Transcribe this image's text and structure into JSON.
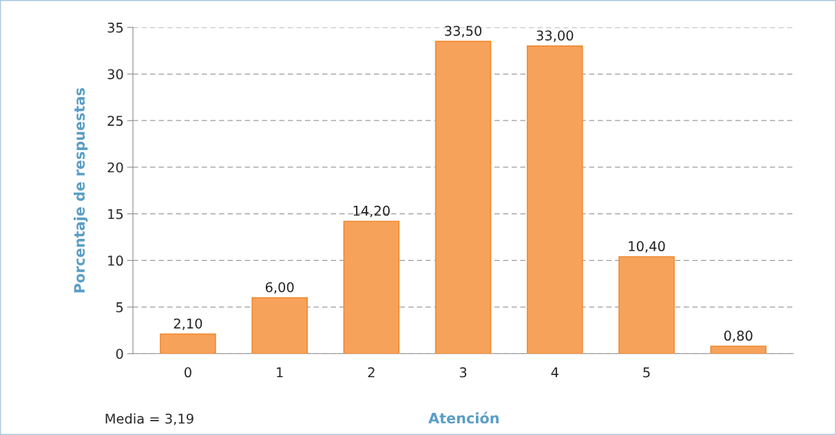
{
  "chart_data": {
    "type": "bar",
    "categories": [
      "0",
      "1",
      "2",
      "3",
      "4",
      "5",
      null
    ],
    "values": [
      2.1,
      6.0,
      14.2,
      33.5,
      33.0,
      10.4,
      0.8
    ],
    "value_labels": [
      "2,10",
      "6,00",
      "14,20",
      "33,50",
      "33,00",
      "10,40",
      "0,80"
    ],
    "color": "#f7a25a",
    "xlabel": "Atención",
    "ylabel": "Porcentaje de respuestas",
    "ylim": [
      0,
      35
    ],
    "yticks": [
      0,
      5,
      10,
      15,
      20,
      25,
      30,
      35
    ],
    "grid": "y",
    "annotations": [
      "Media = 3,19"
    ]
  }
}
